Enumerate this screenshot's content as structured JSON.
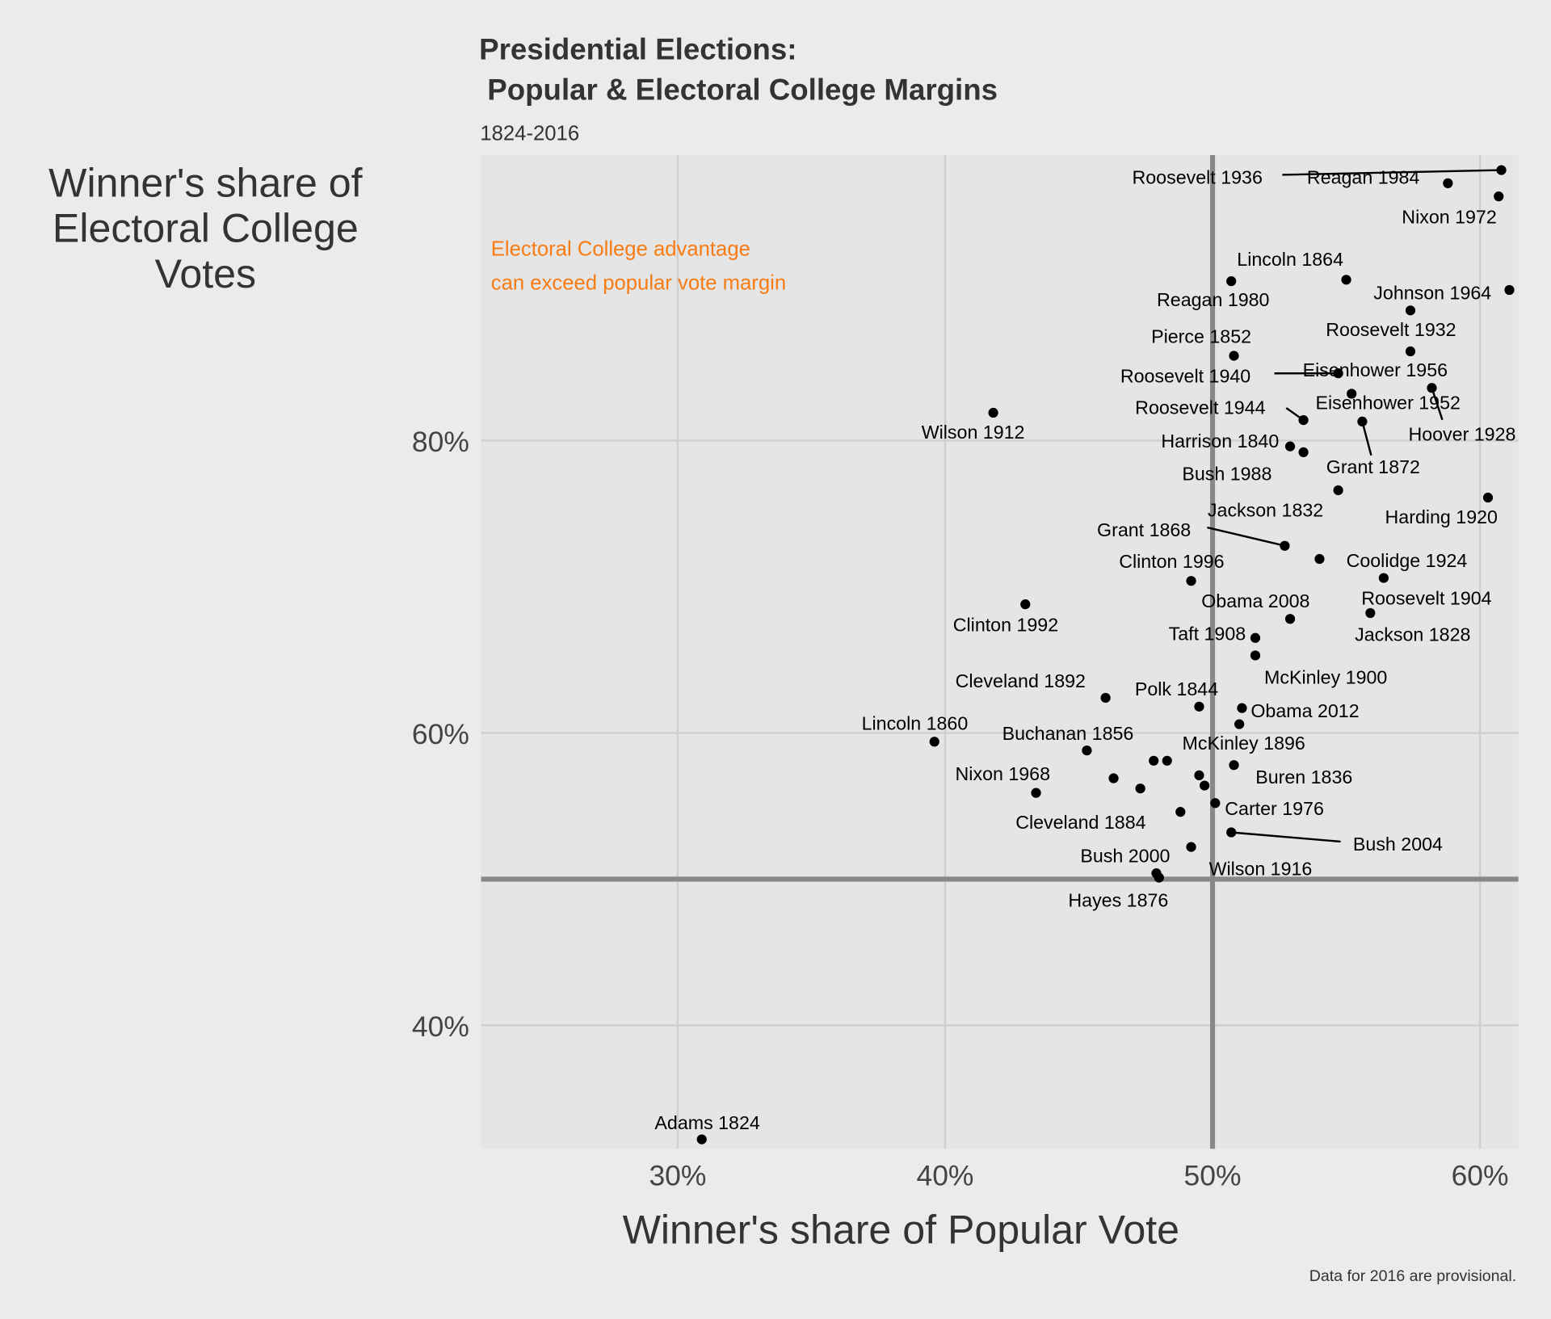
{
  "chart_data": {
    "type": "scatter",
    "title": "Presidential Elections:\n Popular & Electoral College Margins",
    "title_lines": [
      "Presidential Elections:",
      " Popular & Electoral College Margins"
    ],
    "subtitle": "1824-2016",
    "xlabel": "Winner's share of Popular Vote",
    "ylabel_lines": [
      "Winner's share of",
      "Electoral College",
      "Votes"
    ],
    "caption": "Data for 2016 are provisional.",
    "annotation_lines": [
      "Electoral College advantage",
      "can exceed popular vote margin"
    ],
    "annotation_color": "#F97B14",
    "xlim": [
      22.6,
      61.4
    ],
    "ylim": [
      31.5,
      99.5
    ],
    "x_ticks": [
      30,
      40,
      50,
      60
    ],
    "x_tick_labels": [
      "30%",
      "40%",
      "50%",
      "60%"
    ],
    "y_ticks": [
      40,
      60,
      80
    ],
    "y_tick_labels": [
      "40%",
      "60%",
      "80%"
    ],
    "reference_lines": {
      "x": 50,
      "y": 50
    },
    "grid": true,
    "point_color": "#000000",
    "points": [
      {
        "label": "Roosevelt 1936",
        "x": 60.8,
        "y": 98.5
      },
      {
        "label": "Reagan 1984",
        "x": 58.8,
        "y": 97.6
      },
      {
        "label": "Nixon 1972",
        "x": 60.7,
        "y": 96.7
      },
      {
        "label": "Lincoln 1864",
        "x": 55.0,
        "y": 91.0
      },
      {
        "label": "Reagan 1980",
        "x": 50.7,
        "y": 90.9
      },
      {
        "label": "Johnson 1964",
        "x": 61.1,
        "y": 90.3
      },
      {
        "label": "Roosevelt 1932",
        "x": 57.4,
        "y": 88.9
      },
      {
        "label": "Pierce 1852",
        "x": 50.8,
        "y": 85.8
      },
      {
        "label": "Eisenhower 1956",
        "x": 57.4,
        "y": 86.1
      },
      {
        "label": "Roosevelt 1940",
        "x": 54.7,
        "y": 84.6
      },
      {
        "label": "Eisenhower 1952",
        "x": 55.2,
        "y": 83.2
      },
      {
        "label": "Hoover 1928",
        "x": 58.2,
        "y": 83.6
      },
      {
        "label": "Wilson 1912",
        "x": 41.8,
        "y": 81.9
      },
      {
        "label": "Roosevelt 1944",
        "x": 53.4,
        "y": 81.4
      },
      {
        "label": "Grant 1872",
        "x": 55.6,
        "y": 81.3
      },
      {
        "label": "Harrison 1840",
        "x": 52.9,
        "y": 79.6
      },
      {
        "label": "Bush 1988",
        "x": 53.4,
        "y": 79.2
      },
      {
        "label": "Jackson 1832",
        "x": 54.7,
        "y": 76.6
      },
      {
        "label": "Harding 1920",
        "x": 60.3,
        "y": 76.1
      },
      {
        "label": "Grant 1868",
        "x": 52.7,
        "y": 72.8
      },
      {
        "label": "Coolidge 1924",
        "x": 54.0,
        "y": 71.9
      },
      {
        "label": "Clinton 1996",
        "x": 49.2,
        "y": 70.4
      },
      {
        "label": "Roosevelt 1904",
        "x": 56.4,
        "y": 70.6
      },
      {
        "label": "Clinton 1992",
        "x": 43.0,
        "y": 68.8
      },
      {
        "label": "Jackson 1828",
        "x": 55.9,
        "y": 68.2
      },
      {
        "label": "Obama 2008",
        "x": 52.9,
        "y": 67.8
      },
      {
        "label": "Taft 1908",
        "x": 51.6,
        "y": 66.5
      },
      {
        "label": "McKinley 1900",
        "x": 51.6,
        "y": 65.3
      },
      {
        "label": "Cleveland 1892",
        "x": 46.0,
        "y": 62.4
      },
      {
        "label": "Polk 1844",
        "x": 49.5,
        "y": 61.8
      },
      {
        "label": "Obama 2012",
        "x": 51.1,
        "y": 61.7
      },
      {
        "label": "McKinley 1896",
        "x": 51.0,
        "y": 60.6
      },
      {
        "label": "Lincoln 1860",
        "x": 39.6,
        "y": 59.4
      },
      {
        "label": "Buchanan 1856",
        "x": 45.3,
        "y": 58.8
      },
      {
        "label": "",
        "x": 47.8,
        "y": 58.1
      },
      {
        "label": "",
        "x": 48.3,
        "y": 58.1
      },
      {
        "label": "Buren 1836",
        "x": 50.8,
        "y": 57.8
      },
      {
        "label": "",
        "x": 46.3,
        "y": 56.9
      },
      {
        "label": "Nixon 1968",
        "x": 43.4,
        "y": 55.9
      },
      {
        "label": "",
        "x": 47.3,
        "y": 56.2
      },
      {
        "label": "",
        "x": 49.5,
        "y": 57.1
      },
      {
        "label": "",
        "x": 49.7,
        "y": 56.4
      },
      {
        "label": "Carter 1976",
        "x": 50.1,
        "y": 55.2
      },
      {
        "label": "Cleveland 1884",
        "x": 48.8,
        "y": 54.6
      },
      {
        "label": "Bush 2004",
        "x": 50.7,
        "y": 53.2
      },
      {
        "label": "Wilson 1916",
        "x": 49.2,
        "y": 52.2
      },
      {
        "label": "Bush 2000",
        "x": 47.9,
        "y": 50.4
      },
      {
        "label": "Hayes 1876",
        "x": 48.0,
        "y": 50.1
      },
      {
        "label": "Adams 1824",
        "x": 30.9,
        "y": 32.2
      }
    ]
  }
}
